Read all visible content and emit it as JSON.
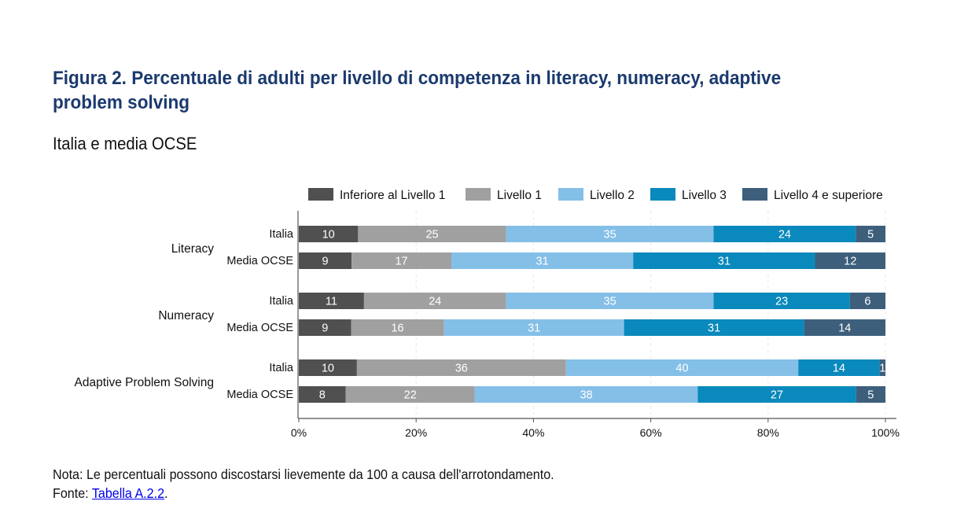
{
  "header": {
    "title": "Figura 2. Percentuale di adulti per livello di competenza in literacy, numeracy, adaptive problem solving",
    "subtitle": "Italia e media OCSE"
  },
  "footer": {
    "note": "Nota: Le percentuali possono discostarsi lievemente da 100 a causa dell'arrotondamento.",
    "source_label": "Fonte: ",
    "source_link": "Tabella A.2.2",
    "source_end": "."
  },
  "chart_data": {
    "type": "bar",
    "orientation": "horizontal",
    "stacked": true,
    "legend_position": "top",
    "grid": true,
    "xlim": [
      0,
      100
    ],
    "x_ticks": [
      "0%",
      "20%",
      "40%",
      "60%",
      "80%",
      "100%"
    ],
    "groups": [
      "Literacy",
      "Numeracy",
      "Adaptive Problem Solving"
    ],
    "categories": [
      "Italia",
      "Media OCSE"
    ],
    "series": [
      {
        "name": "Inferiore al Livello 1",
        "color": "#505050",
        "label_color": "#ffffff",
        "values": [
          [
            10,
            9
          ],
          [
            11,
            9
          ],
          [
            10,
            8
          ]
        ]
      },
      {
        "name": "Livello 1",
        "color": "#a0a0a0",
        "label_color": "#ffffff",
        "values": [
          [
            25,
            17
          ],
          [
            24,
            16
          ],
          [
            36,
            22
          ]
        ]
      },
      {
        "name": "Livello 2",
        "color": "#84bfe8",
        "label_color": "#ffffff",
        "values": [
          [
            35,
            31
          ],
          [
            35,
            31
          ],
          [
            40,
            38
          ]
        ]
      },
      {
        "name": "Livello 3",
        "color": "#0a89bd",
        "label_color": "#ffffff",
        "values": [
          [
            24,
            31
          ],
          [
            23,
            31
          ],
          [
            14,
            27
          ]
        ]
      },
      {
        "name": "Livello 4 e superiore",
        "color": "#3d5f7c",
        "label_color": "#ffffff",
        "values": [
          [
            5,
            12
          ],
          [
            6,
            14
          ],
          [
            1,
            5
          ]
        ]
      }
    ]
  }
}
